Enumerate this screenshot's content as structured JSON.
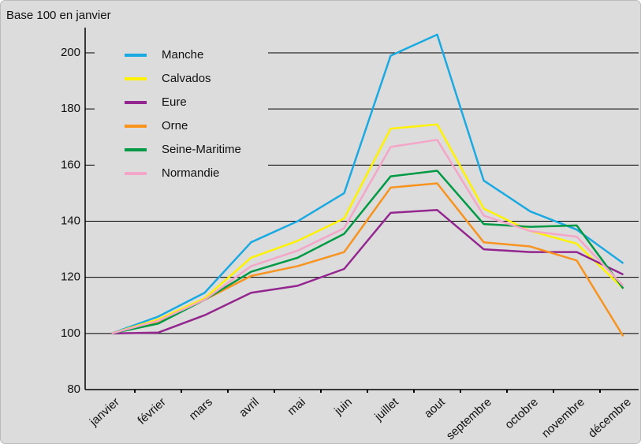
{
  "chart_data": {
    "type": "line",
    "title": "Base 100 en janvier",
    "categories": [
      "janvier",
      "février",
      "mars",
      "avril",
      "mai",
      "juin",
      "juillet",
      "aout",
      "septembre",
      "octobre",
      "novembre",
      "décembre"
    ],
    "series": [
      {
        "name": "Manche",
        "color": "#1ba9e1",
        "values": [
          100,
          106,
          114.5,
          132.5,
          140,
          150,
          199,
          206.5,
          154.5,
          143.5,
          137,
          125
        ]
      },
      {
        "name": "Calvados",
        "color": "#fff200",
        "values": [
          100,
          105,
          112.5,
          127,
          133,
          141,
          173,
          174.5,
          144.5,
          136.5,
          132,
          116
        ]
      },
      {
        "name": "Eure",
        "color": "#93278f",
        "values": [
          100,
          100.3,
          106.5,
          114.5,
          117,
          123,
          143,
          144,
          130,
          129,
          129,
          121
        ]
      },
      {
        "name": "Orne",
        "color": "#f7931e",
        "values": [
          100,
          104,
          112,
          120.5,
          124,
          129,
          152,
          153.5,
          132.5,
          131,
          126,
          99
        ]
      },
      {
        "name": "Seine-Maritime",
        "color": "#009a44",
        "values": [
          100,
          103.5,
          112,
          122,
          127,
          135.5,
          156,
          158,
          139,
          138,
          138.5,
          116
        ]
      },
      {
        "name": "Normandie",
        "color": "#f4a6c8",
        "values": [
          100,
          104.5,
          112,
          124,
          129.5,
          137.5,
          166.5,
          169,
          142,
          136.5,
          134.5,
          117
        ]
      }
    ],
    "ylim": [
      80,
      209
    ],
    "yticks": [
      80,
      100,
      120,
      140,
      160,
      180,
      200
    ],
    "grid": true,
    "legend": "top-left"
  }
}
